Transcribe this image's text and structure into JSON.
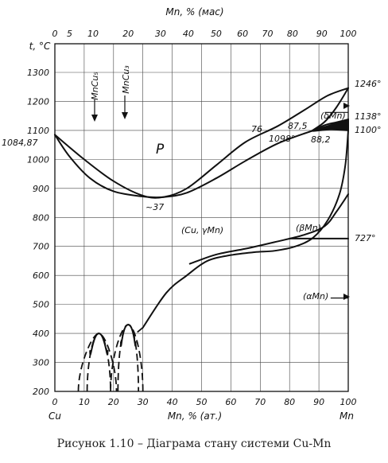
{
  "top_axis": {
    "title": "Mn, % (мас)",
    "ticks": [
      "0",
      "5",
      "10",
      "20",
      "30",
      "40",
      "50",
      "60",
      "70",
      "80",
      "90",
      "100"
    ],
    "tick_at": [
      0,
      5,
      13,
      25,
      36,
      45.5,
      55,
      64,
      72.5,
      81,
      91,
      100
    ]
  },
  "bottom_axis": {
    "title": "Mn, % (ат.)",
    "left_label": "Cu",
    "right_label": "Mn",
    "ticks": [
      "0",
      "10",
      "20",
      "30",
      "40",
      "50",
      "60",
      "70",
      "80",
      "90",
      "100"
    ],
    "values": [
      0,
      10,
      20,
      30,
      40,
      50,
      60,
      70,
      80,
      90,
      100
    ]
  },
  "y_axis": {
    "title": "t, °C",
    "ticks": [
      "200",
      "300",
      "400",
      "500",
      "600",
      "700",
      "800",
      "900",
      "1000",
      "1100",
      "1200",
      "1300"
    ],
    "values": [
      200,
      300,
      400,
      500,
      600,
      700,
      800,
      900,
      1000,
      1100,
      1200,
      1300
    ]
  },
  "labels": {
    "mncu5": "MnCu₅",
    "mncu3": "MnCu₃",
    "p": "P",
    "min37": "~37",
    "cu_ymn": "(Cu, γMn)",
    "left_1084": "1084,87",
    "l76": "76",
    "l875": "87,5",
    "l1098": "1098°",
    "l882": "88,2",
    "l1246": "1246°",
    "l1138": "1138°",
    "l1100": "1100°",
    "l727": "727°",
    "deltamn": "(δMn)",
    "betamn": "(βMn)",
    "alphamn": "(αMn)"
  },
  "caption": "Рисунок 1.10 – Діаграма стану системи Cu-Mn",
  "chart_data": {
    "type": "phase-diagram",
    "system": "Cu-Mn",
    "xlim": [
      0,
      100
    ],
    "ylim": [
      200,
      1300
    ],
    "curves": {
      "liquidus": [
        [
          0,
          1084.87
        ],
        [
          10,
          1000
        ],
        [
          20,
          925
        ],
        [
          30,
          875
        ],
        [
          37,
          870
        ],
        [
          45,
          900
        ],
        [
          55,
          980
        ],
        [
          65,
          1060
        ],
        [
          76,
          1115
        ],
        [
          85,
          1170
        ],
        [
          93,
          1220
        ],
        [
          100,
          1246
        ]
      ],
      "solidus": [
        [
          0,
          1084.87
        ],
        [
          5,
          1010
        ],
        [
          12,
          935
        ],
        [
          20,
          890
        ],
        [
          30,
          872
        ],
        [
          37,
          870
        ],
        [
          45,
          885
        ],
        [
          55,
          935
        ],
        [
          65,
          995
        ],
        [
          76,
          1055
        ],
        [
          87.5,
          1098
        ]
      ],
      "delta_left": [
        [
          87.5,
          1098
        ],
        [
          92,
          1130
        ],
        [
          96,
          1180
        ],
        [
          100,
          1246
        ]
      ],
      "delta_right": [
        [
          87.5,
          1098
        ],
        [
          92,
          1118
        ],
        [
          96,
          1128
        ],
        [
          100,
          1138
        ]
      ],
      "peritectic_band_top": [
        [
          87.5,
          1098
        ],
        [
          94,
          1118
        ],
        [
          100,
          1138
        ]
      ],
      "peritectic_band_bottom": [
        [
          88.2,
          1098
        ],
        [
          94,
          1104
        ],
        [
          100,
          1100
        ]
      ],
      "gamma_lower": [
        [
          30,
          420
        ],
        [
          38,
          540
        ],
        [
          45,
          600
        ],
        [
          52,
          650
        ],
        [
          60,
          670
        ],
        [
          68,
          680
        ],
        [
          75,
          685
        ],
        [
          82,
          700
        ],
        [
          88,
          730
        ],
        [
          93,
          790
        ],
        [
          97,
          880
        ],
        [
          99,
          980
        ],
        [
          100,
          1100
        ]
      ],
      "gamma_upper": [
        [
          46,
          640
        ],
        [
          55,
          672
        ],
        [
          65,
          692
        ],
        [
          75,
          715
        ],
        [
          85,
          740
        ],
        [
          92,
          770
        ],
        [
          96,
          820
        ],
        [
          100,
          880
        ]
      ],
      "beta_alpha": [
        [
          80,
          727
        ],
        [
          100,
          727
        ]
      ],
      "ordered_mncu5_peak": [
        15,
        400
      ],
      "ordered_mncu3_peak": [
        25,
        430
      ]
    },
    "points": {
      "cu_melting": 1084.87,
      "minimum": 37,
      "eutectoid": 727,
      "mn_melting": 1246,
      "delta_transition": 1138,
      "gamma_delta": 1100,
      "peritectic_t": 1098,
      "peritectic_left": 76,
      "peritectic_mid": 87.5,
      "peritectic_right": 88.2
    },
    "compounds": [
      "MnCu₅",
      "MnCu₃"
    ],
    "phases": [
      "P",
      "(Cu, γMn)",
      "(δMn)",
      "(βMn)",
      "(αMn)"
    ],
    "compound_x": [
      13,
      25
    ]
  }
}
